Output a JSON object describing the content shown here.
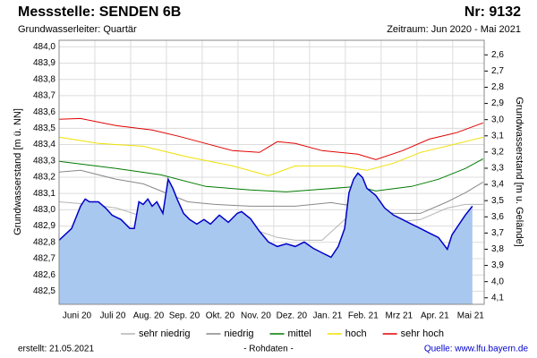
{
  "chart_data": {
    "type": "line",
    "title": "Messstelle: SENDEN 6B",
    "number": "Nr: 9132",
    "subtitle": "Grundwasserleiter: Quartär",
    "period": "Zeitraum: Jun 2020 - Mai 2021",
    "ylabel": "Grundwasserstand [m ü. NN]",
    "y2label": "Grundwasserstand [m u. Gelände]",
    "created": "erstellt:  21.05.2021",
    "note": "- Rohdaten -",
    "source": "Quelle: www.lfu.bayern.de",
    "categories": [
      "Juni 20",
      "Juli 20",
      "Aug. 20",
      "Sep. 20",
      "Okt. 20",
      "Nov. 20",
      "Dez. 20",
      "Jan. 21",
      "Feb. 21",
      "Mrz 21",
      "Apr. 21",
      "Mai 21"
    ],
    "xlim": [
      0,
      11.88
    ],
    "ylim": [
      482.42,
      484.04
    ],
    "yticks": [
      {
        "value": 482.5,
        "label": "482,5"
      },
      {
        "value": 482.6,
        "label": "482,6"
      },
      {
        "value": 482.7,
        "label": "482,7"
      },
      {
        "value": 482.8,
        "label": "482,8"
      },
      {
        "value": 482.9,
        "label": "482,9"
      },
      {
        "value": 483.0,
        "label": "483,0"
      },
      {
        "value": 483.1,
        "label": "483,1"
      },
      {
        "value": 483.2,
        "label": "483,2"
      },
      {
        "value": 483.3,
        "label": "483,3"
      },
      {
        "value": 483.4,
        "label": "483,4"
      },
      {
        "value": 483.5,
        "label": "483,5"
      },
      {
        "value": 483.6,
        "label": "483,6"
      },
      {
        "value": 483.7,
        "label": "483,7"
      },
      {
        "value": 483.8,
        "label": "483,8"
      },
      {
        "value": 483.9,
        "label": "483,9"
      },
      {
        "value": 484.0,
        "label": "484,0"
      }
    ],
    "y2lim": [
      4.14,
      2.51
    ],
    "y2ticks": [
      {
        "value": 2.6,
        "label": "2,6"
      },
      {
        "value": 2.7,
        "label": "2,7"
      },
      {
        "value": 2.8,
        "label": "2,8"
      },
      {
        "value": 2.9,
        "label": "2,9"
      },
      {
        "value": 3.0,
        "label": "3,0"
      },
      {
        "value": 3.1,
        "label": "3,1"
      },
      {
        "value": 3.2,
        "label": "3,2"
      },
      {
        "value": 3.3,
        "label": "3,3"
      },
      {
        "value": 3.4,
        "label": "3,4"
      },
      {
        "value": 3.5,
        "label": "3,5"
      },
      {
        "value": 3.6,
        "label": "3,6"
      },
      {
        "value": 3.7,
        "label": "3,7"
      },
      {
        "value": 3.8,
        "label": "3,8"
      },
      {
        "value": 3.9,
        "label": "3,9"
      },
      {
        "value": 4.0,
        "label": "4,0"
      },
      {
        "value": 4.1,
        "label": "4,1"
      }
    ],
    "grid": true,
    "legend": "bottom",
    "series": [
      {
        "name": "sehr niedrig",
        "color": "#b4b4b4",
        "x": [
          0,
          0.85,
          1.6,
          2.6,
          3.6,
          4.23,
          4.85,
          5.35,
          6.1,
          6.6,
          7.35,
          7.98,
          8.6,
          9.35,
          10.1,
          10.85,
          11.35,
          11.85
        ],
        "values": [
          483.049,
          483.033,
          483.011,
          482.94,
          482.846,
          482.802,
          482.868,
          482.885,
          482.83,
          482.813,
          482.813,
          482.94,
          482.956,
          482.923,
          482.94,
          483.011,
          483.033,
          483.033
        ]
      },
      {
        "name": "niedrig",
        "color": "#888888",
        "x": [
          0,
          0.6,
          1.6,
          2.35,
          3.6,
          4.35,
          5.35,
          6.6,
          7.6,
          8.6,
          9.35,
          10.1,
          10.85,
          11.35,
          11.85
        ],
        "values": [
          483.231,
          483.242,
          483.187,
          483.159,
          483.049,
          483.033,
          483.022,
          483.022,
          483.044,
          483.011,
          482.978,
          482.978,
          483.049,
          483.104,
          483.17
        ]
      },
      {
        "name": "mittel",
        "color": "#007a00",
        "x": [
          0,
          1.6,
          2.85,
          4.1,
          5.35,
          6.35,
          7.35,
          8.35,
          8.85,
          9.85,
          10.6,
          11.35,
          11.85
        ],
        "values": [
          483.297,
          483.253,
          483.214,
          483.143,
          483.121,
          483.11,
          483.126,
          483.143,
          483.115,
          483.143,
          483.187,
          483.253,
          483.313
        ]
      },
      {
        "name": "hoch",
        "color": "#f0e000",
        "x": [
          0,
          1.1,
          2.35,
          3.6,
          4.85,
          5.85,
          6.6,
          7.85,
          8.6,
          9.35,
          10.1,
          11.35,
          11.85
        ],
        "values": [
          483.445,
          483.407,
          483.39,
          483.324,
          483.269,
          483.209,
          483.269,
          483.269,
          483.242,
          483.286,
          483.352,
          483.418,
          483.445
        ]
      },
      {
        "name": "sehr hoch",
        "color": "#e00000",
        "x": [
          0,
          0.6,
          1.6,
          2.6,
          3.35,
          4.1,
          4.85,
          5.6,
          6.1,
          6.6,
          7.35,
          8.35,
          8.85,
          9.6,
          10.35,
          11.1,
          11.85
        ],
        "values": [
          483.555,
          483.56,
          483.516,
          483.489,
          483.451,
          483.407,
          483.363,
          483.352,
          483.418,
          483.407,
          483.363,
          483.341,
          483.308,
          483.363,
          483.434,
          483.473,
          483.533
        ]
      },
      {
        "color": "#0000c8",
        "fill": "#a9c8ef",
        "x": [
          0,
          0.35,
          0.6,
          0.73,
          0.85,
          1.1,
          1.3,
          1.48,
          1.73,
          1.98,
          2.1,
          2.23,
          2.35,
          2.48,
          2.6,
          2.73,
          2.9,
          3.05,
          3.18,
          3.3,
          3.48,
          3.65,
          3.85,
          4.05,
          4.23,
          4.48,
          4.73,
          4.98,
          5.1,
          5.35,
          5.6,
          5.85,
          6.1,
          6.35,
          6.6,
          6.85,
          7.1,
          7.35,
          7.6,
          7.8,
          7.98,
          8.1,
          8.23,
          8.35,
          8.48,
          8.6,
          8.85,
          9.1,
          9.35,
          9.6,
          9.85,
          10.1,
          10.35,
          10.6,
          10.85,
          10.98,
          11.1,
          11.35,
          11.55
        ],
        "values": [
          482.813,
          482.885,
          483.022,
          483.066,
          483.049,
          483.049,
          483.011,
          482.967,
          482.94,
          482.885,
          482.885,
          483.049,
          483.033,
          483.066,
          483.022,
          483.049,
          482.978,
          483.187,
          483.132,
          483.066,
          482.978,
          482.94,
          482.912,
          482.94,
          482.912,
          482.967,
          482.923,
          482.978,
          482.989,
          482.945,
          482.868,
          482.802,
          482.775,
          482.791,
          482.775,
          482.802,
          482.764,
          482.736,
          482.709,
          482.775,
          482.885,
          483.104,
          483.187,
          483.225,
          483.198,
          483.132,
          483.088,
          483.011,
          482.967,
          482.94,
          482.912,
          482.885,
          482.857,
          482.83,
          482.758,
          482.846,
          482.885,
          482.967,
          483.022
        ]
      }
    ]
  }
}
